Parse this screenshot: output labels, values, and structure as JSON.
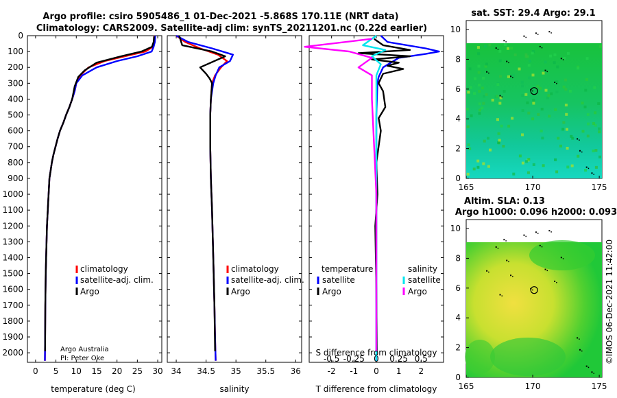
{
  "title_line1": "Argo profile: csiro 5905486_1 01-Dec-2021 -5.868S 170.11E (NRT data)",
  "title_line2": "Climatology: CARS2009. Satellite-adj clim: synTS_20211201.nc (0.22d earlier)",
  "credit_line1": "Argo Australia",
  "credit_line2": "PI: Peter Oke",
  "imos_stamp": "©IMOS 06-Dec-2021 11:42:00",
  "colors": {
    "climatology": "#ff0000",
    "satellite": "#0000ff",
    "argo": "#000000",
    "sat_salinity": "#00e5ee",
    "argo_salinity": "#ff00ff"
  },
  "legend1": {
    "climatology": "climatology",
    "satellite": "satellite-adj. clim.",
    "argo": "Argo"
  },
  "legend3": {
    "temp_header": "temperature",
    "sal_header": "salinity",
    "satellite": "satellite",
    "argo": "Argo"
  },
  "chart_data": [
    {
      "type": "line",
      "name": "temperature",
      "xlabel": "temperature (deg C)",
      "ylabel": "",
      "xlim": [
        -2,
        31
      ],
      "ylim": [
        0,
        2060
      ],
      "xticks": [
        0,
        5,
        10,
        15,
        20,
        25,
        30
      ],
      "yticks": [
        0,
        100,
        200,
        300,
        400,
        500,
        600,
        700,
        800,
        900,
        1000,
        1100,
        1200,
        1300,
        1400,
        1500,
        1600,
        1700,
        1800,
        1900,
        2000
      ],
      "series": [
        {
          "name": "climatology",
          "color": "red",
          "x": [
            29.2,
            29.1,
            28.8,
            27,
            22,
            17,
            13,
            11,
            10,
            9.6,
            9,
            8.3,
            7.5,
            6.8,
            6,
            5.4,
            4.9,
            4.4,
            4,
            3.7,
            3.4,
            3.2,
            3,
            2.8,
            2.7,
            2.6,
            2.5,
            2.4,
            2.35,
            2.3
          ],
          "y": [
            0,
            40,
            70,
            100,
            130,
            160,
            200,
            250,
            300,
            350,
            400,
            450,
            500,
            550,
            600,
            650,
            700,
            750,
            800,
            850,
            900,
            1000,
            1100,
            1200,
            1300,
            1400,
            1500,
            1700,
            1900,
            2050
          ]
        },
        {
          "name": "satellite-adj. clim.",
          "color": "blue",
          "x": [
            29.4,
            29.3,
            29,
            28.5,
            25,
            20,
            15,
            11.5,
            10,
            9.6,
            9,
            8.3,
            7.5,
            6.8,
            6,
            5.4,
            4.9,
            4.4,
            4,
            3.7,
            3.4,
            3.2,
            3,
            2.8,
            2.7,
            2.6,
            2.5,
            2.4,
            2.35,
            2.3
          ],
          "y": [
            0,
            40,
            70,
            100,
            130,
            160,
            200,
            250,
            300,
            350,
            400,
            450,
            500,
            550,
            600,
            650,
            700,
            750,
            800,
            850,
            900,
            1000,
            1100,
            1200,
            1300,
            1400,
            1500,
            1700,
            1900,
            2050
          ]
        },
        {
          "name": "Argo",
          "color": "black",
          "x": [
            29.1,
            29,
            28.6,
            26,
            21,
            15,
            12,
            10.5,
            9.6,
            9,
            8.3,
            7.5,
            6.8,
            6,
            5.4,
            4.9,
            4.4,
            4,
            3.7,
            3.4,
            3.2,
            3,
            2.8,
            2.7,
            2.6,
            2.5,
            2.4,
            2.35
          ],
          "y": [
            5,
            40,
            70,
            100,
            130,
            170,
            220,
            260,
            320,
            400,
            450,
            500,
            550,
            600,
            650,
            700,
            750,
            800,
            850,
            900,
            1000,
            1100,
            1200,
            1300,
            1400,
            1500,
            1700,
            1990
          ]
        }
      ]
    },
    {
      "type": "line",
      "name": "salinity",
      "xlabel": "salinity",
      "ylabel": "",
      "xlim": [
        33.85,
        36.1
      ],
      "xticks": [
        34,
        34.5,
        35,
        35.5,
        36
      ],
      "ylim": [
        0,
        2060
      ],
      "series": [
        {
          "name": "climatology",
          "color": "red",
          "x": [
            34.0,
            34.15,
            34.4,
            34.7,
            34.85,
            34.75,
            34.65,
            34.6,
            34.58,
            34.57,
            34.57,
            34.58,
            34.6,
            34.62,
            34.64,
            34.65,
            34.66
          ],
          "y": [
            0,
            40,
            80,
            120,
            160,
            200,
            250,
            300,
            400,
            500,
            700,
            900,
            1100,
            1400,
            1700,
            1900,
            2050
          ]
        },
        {
          "name": "satellite-adj. clim.",
          "color": "blue",
          "x": [
            34.0,
            34.2,
            34.6,
            34.95,
            34.9,
            34.72,
            34.66,
            34.62,
            34.58,
            34.57,
            34.57,
            34.58,
            34.6,
            34.62,
            34.64,
            34.65,
            34.66
          ],
          "y": [
            0,
            40,
            80,
            120,
            160,
            200,
            250,
            300,
            400,
            500,
            700,
            900,
            1100,
            1400,
            1700,
            1900,
            2050
          ]
        },
        {
          "name": "Argo",
          "color": "black",
          "x": [
            34.05,
            34.1,
            34.6,
            34.82,
            34.4,
            34.5,
            34.56,
            34.6,
            34.58,
            34.57,
            34.57,
            34.58,
            34.6,
            34.62,
            34.64,
            34.65
          ],
          "y": [
            0,
            60,
            100,
            130,
            200,
            240,
            270,
            300,
            400,
            500,
            700,
            900,
            1100,
            1400,
            1700,
            1990
          ]
        }
      ]
    },
    {
      "type": "line",
      "name": "differences",
      "xlabel": "T difference from climatology",
      "x2label": "S difference from climatology",
      "xlim": [
        -3,
        3
      ],
      "xticks": [
        -2,
        -1,
        0,
        1,
        2
      ],
      "s_xticks": [
        -0.5,
        -0.25,
        0,
        0.25,
        0.5
      ],
      "s_xlim": [
        -0.75,
        0.75
      ],
      "ylim": [
        0,
        2060
      ],
      "series": [
        {
          "name": "satellite T",
          "color": "blue",
          "x": [
            0.2,
            0.5,
            2.2,
            2.8,
            2.2,
            1.0,
            0.3,
            0.1,
            0.05,
            0.0,
            0.0,
            0.0,
            0.0,
            0.0
          ],
          "y": [
            0,
            40,
            80,
            100,
            115,
            140,
            200,
            260,
            300,
            500,
            800,
            1200,
            1600,
            2050
          ]
        },
        {
          "name": "Argo T",
          "color": "black",
          "x": [
            -0.1,
            0.3,
            1.5,
            -0.8,
            1.5,
            -0.2,
            1.0,
            0.5,
            1.2,
            0.3,
            0.2,
            0.1,
            0.3,
            0.4,
            0.1,
            0.2,
            0.0,
            0.05,
            -0.05,
            0.0,
            0.02
          ],
          "y": [
            20,
            60,
            90,
            110,
            130,
            150,
            170,
            190,
            210,
            240,
            270,
            300,
            350,
            450,
            520,
            600,
            800,
            1000,
            1200,
            1600,
            1990
          ]
        },
        {
          "name": "satellite S",
          "color": "cyan",
          "x": [
            0.0,
            -0.15,
            0.1,
            -0.05,
            0.05,
            0.0,
            0.0,
            0.0
          ],
          "y": [
            0,
            60,
            90,
            130,
            180,
            250,
            400,
            2050
          ]
        },
        {
          "name": "Argo S",
          "color": "magenta",
          "x": [
            -0.05,
            -0.8,
            -0.3,
            -0.05,
            -0.2,
            -0.05,
            -0.05,
            0.0,
            0.0
          ],
          "y": [
            20,
            70,
            100,
            140,
            200,
            250,
            400,
            1000,
            1990
          ]
        }
      ]
    },
    {
      "type": "heatmap",
      "name": "sst_map",
      "title": "sat. SST: 29.4 Argo: 29.1",
      "xlim": [
        165,
        175.2
      ],
      "ylim": [
        0,
        10.6
      ],
      "xticks": [
        165,
        170,
        175
      ],
      "yticks": [
        0,
        2,
        4,
        6,
        8,
        10
      ],
      "marker": {
        "lon": 170.11,
        "lat": 5.868
      }
    },
    {
      "type": "heatmap",
      "name": "sla_map",
      "title": "Altim. SLA: 0.13",
      "subtitle": "Argo h1000: 0.096 h2000: 0.093",
      "xlim": [
        165,
        175.2
      ],
      "ylim": [
        0,
        10.6
      ],
      "xticks": [
        165,
        170,
        175
      ],
      "yticks": [
        0,
        2,
        4,
        6,
        8,
        10
      ],
      "marker": {
        "lon": 170.11,
        "lat": 5.868
      }
    }
  ]
}
